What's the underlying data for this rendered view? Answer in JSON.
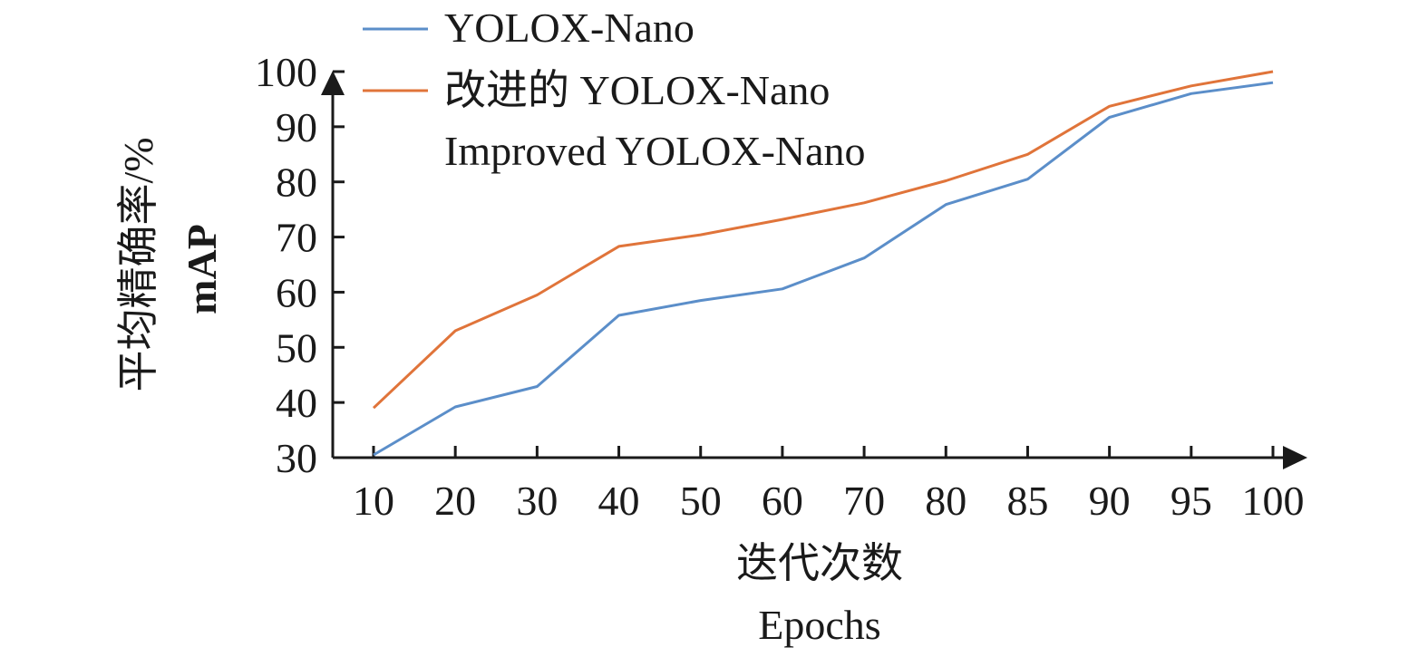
{
  "chart_data": {
    "type": "line",
    "categories": [
      "10",
      "20",
      "30",
      "40",
      "50",
      "60",
      "70",
      "80",
      "85",
      "90",
      "95",
      "100"
    ],
    "series": [
      {
        "name": "YOLOX-Nano",
        "color": "#5b8ec9",
        "values": [
          30.5,
          39.2,
          42.9,
          55.8,
          58.5,
          60.6,
          66.2,
          75.9,
          80.5,
          91.7,
          96.0,
          98.0
        ]
      },
      {
        "name": "改进的 YOLOX-Nano",
        "name_en": "Improved YOLOX-Nano",
        "color": "#e0743a",
        "values": [
          39.0,
          53.0,
          59.5,
          68.3,
          70.4,
          73.2,
          76.2,
          80.2,
          85.0,
          93.7,
          97.4,
          100.0
        ]
      }
    ],
    "ylim": [
      30,
      100
    ],
    "yticks": [
      "30",
      "40",
      "50",
      "60",
      "70",
      "80",
      "90",
      "100"
    ],
    "ylabel_cn": "平均精确率/%",
    "ylabel_en": "mAP",
    "xlabel_cn": "迭代次数",
    "xlabel_en": "Epochs",
    "grid": false,
    "legend_position": "top-left"
  }
}
